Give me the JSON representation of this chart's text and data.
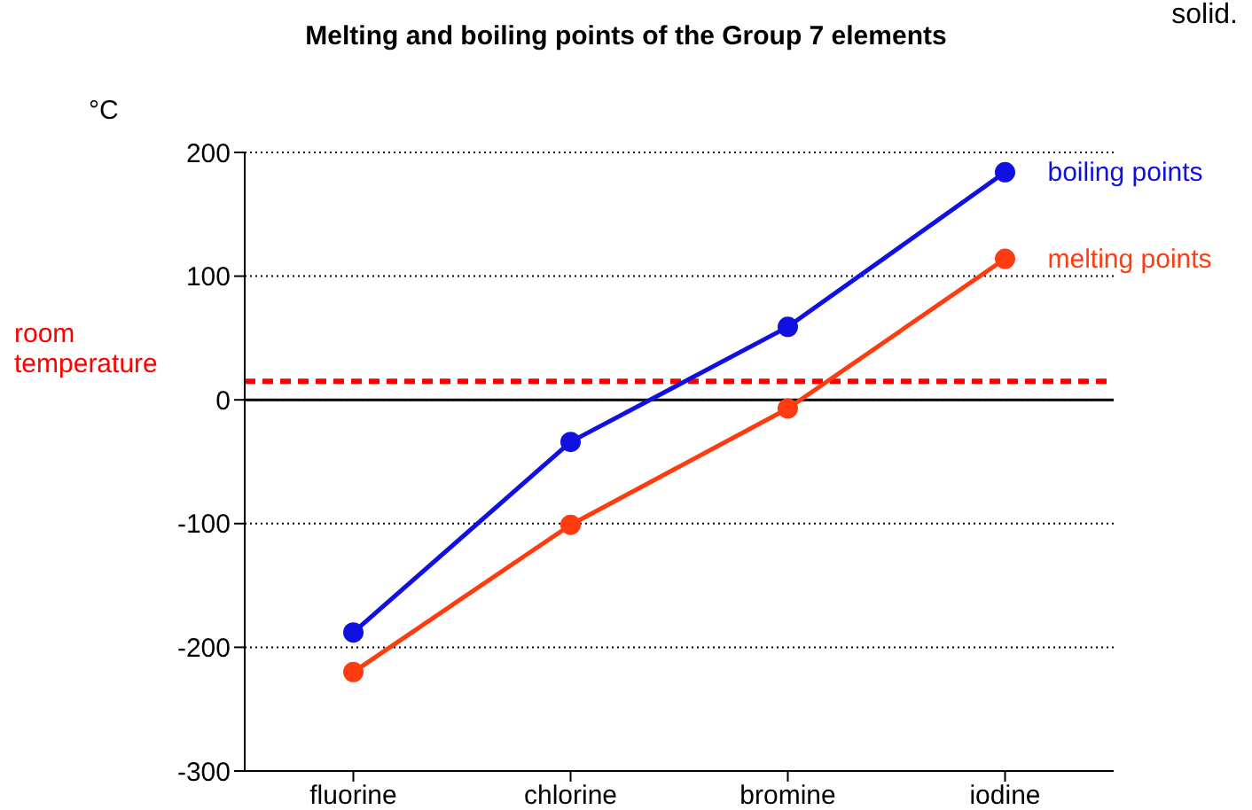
{
  "chart_data": {
    "type": "line",
    "title": "Melting and boiling points of the Group 7 elements",
    "ylabel": "°C",
    "categories": [
      "fluorine",
      "chlorine",
      "bromine",
      "iodine"
    ],
    "series": [
      {
        "name": "boiling points",
        "color": "#1010e0",
        "values": [
          -188,
          -34,
          59,
          184
        ]
      },
      {
        "name": "melting points",
        "color": "#ff3c10",
        "values": [
          -220,
          -101,
          -7,
          114
        ]
      }
    ],
    "ylim": [
      -300,
      200
    ],
    "yticks": [
      -300,
      -200,
      -100,
      0,
      100,
      200
    ],
    "grid": "y",
    "marker": "circle",
    "line_style": "solid",
    "ref_lines": [
      {
        "axis": "y",
        "value": 0,
        "color": "#000000",
        "line_style": "solid"
      },
      {
        "axis": "y",
        "value": 15,
        "label": "room temperature",
        "color": "#ff0000",
        "line_style": "dashed"
      }
    ],
    "annotations": [
      "solid."
    ]
  }
}
